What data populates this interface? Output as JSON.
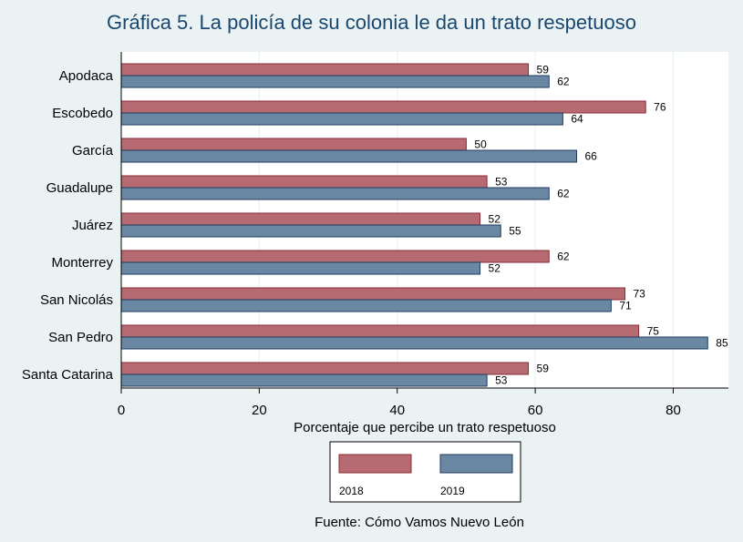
{
  "chart_data": {
    "type": "bar",
    "orientation": "horizontal",
    "title": "Gráfica 5. La policía de su colonia le da un trato respetuoso",
    "xlabel": "Porcentaje que percibe un trato respetuoso",
    "ylabel": "",
    "xlim": [
      0,
      88
    ],
    "xticks": [
      0,
      20,
      40,
      60,
      80
    ],
    "grid": true,
    "legend_position": "bottom",
    "categories": [
      "Apodaca",
      "Escobedo",
      "García",
      "Guadalupe",
      "Juárez",
      "Monterrey",
      "San Nicolás",
      "San Pedro",
      "Santa Catarina"
    ],
    "series": [
      {
        "name": "2018",
        "color": "#b66a72",
        "values": [
          59,
          76,
          50,
          53,
          52,
          62,
          73,
          75,
          59
        ]
      },
      {
        "name": "2019",
        "color": "#6a87a3",
        "values": [
          62,
          64,
          66,
          62,
          55,
          52,
          71,
          85,
          53
        ]
      }
    ]
  },
  "footer": "Fuente: Cómo Vamos Nuevo León"
}
